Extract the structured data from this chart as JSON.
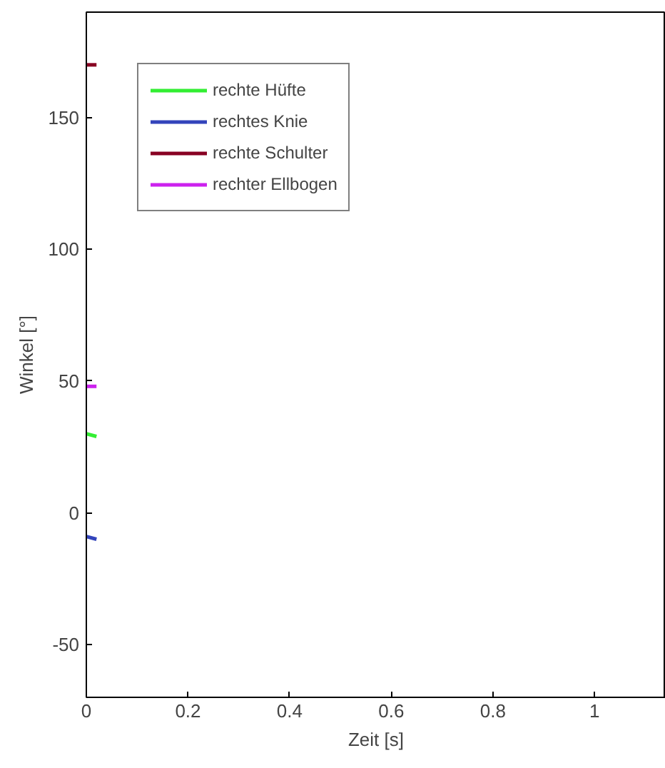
{
  "chart_data": {
    "type": "line",
    "xlabel": "Zeit [s]",
    "ylabel": "Winkel [°]",
    "x": [
      0,
      0.02
    ],
    "series": [
      {
        "name": "rechte Hüfte",
        "color": "#33ee33",
        "values": [
          30,
          29
        ]
      },
      {
        "name": "rechtes Knie",
        "color": "#3344bb",
        "values": [
          -9,
          -10
        ]
      },
      {
        "name": "rechte Schulter",
        "color": "#880022",
        "values": [
          170,
          170
        ]
      },
      {
        "name": "rechter Ellbogen",
        "color": "#cc22ee",
        "values": [
          48,
          48
        ]
      }
    ],
    "xlim": [
      0,
      1.14
    ],
    "ylim": [
      -70,
      190
    ],
    "xticks": [
      0,
      0.2,
      0.4,
      0.6,
      0.8,
      1
    ],
    "yticks": [
      -50,
      0,
      50,
      100,
      150
    ],
    "grid": false,
    "legend": "top left",
    "line_style": "solid",
    "marker": "none"
  }
}
